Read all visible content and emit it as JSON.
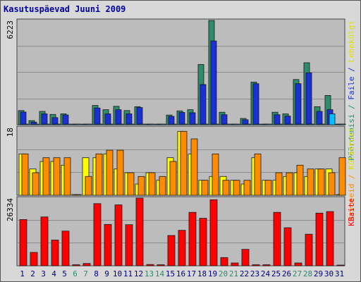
{
  "chart_data": [
    {
      "type": "bar",
      "title": "Kasutuspäevad Juuni 2009",
      "categories": [
        "1",
        "2",
        "3",
        "4",
        "5",
        "6",
        "7",
        "8",
        "9",
        "10",
        "11",
        "12",
        "13",
        "14",
        "15",
        "16",
        "17",
        "18",
        "19",
        "20",
        "21",
        "22",
        "23",
        "24",
        "25",
        "26",
        "27",
        "28",
        "29",
        "30",
        "31"
      ],
      "weekend_days": [
        "6",
        "7",
        "13",
        "14",
        "20",
        "21",
        "27",
        "28"
      ],
      "ymax_label": "6223",
      "ylim": [
        0,
        6223
      ],
      "series": [
        {
          "name": "Pöördumisi",
          "color": "#2e8b6b",
          "values": [
            850,
            250,
            800,
            620,
            650,
            30,
            30,
            1150,
            900,
            1100,
            850,
            1080,
            30,
            30,
            580,
            830,
            900,
            3600,
            6223,
            750,
            30,
            380,
            2550,
            30,
            750,
            650,
            2700,
            3700,
            1080,
            1750,
            30
          ]
        },
        {
          "name": "Faile",
          "color": "#1a2fd6",
          "values": [
            760,
            160,
            650,
            430,
            590,
            20,
            20,
            1000,
            650,
            900,
            650,
            1030,
            20,
            20,
            500,
            740,
            720,
            2400,
            5000,
            600,
            20,
            300,
            2450,
            20,
            600,
            520,
            2450,
            3100,
            800,
            900,
            20
          ]
        },
        {
          "name": "Lehekülgi",
          "color": "#00bfff",
          "values": [
            0,
            0,
            0,
            0,
            0,
            0,
            0,
            0,
            0,
            0,
            0,
            0,
            0,
            0,
            0,
            0,
            0,
            0,
            0,
            0,
            0,
            0,
            0,
            0,
            0,
            0,
            0,
            0,
            0,
            650,
            0
          ]
        }
      ],
      "right_label": [
        "Pöördumisi",
        " / ",
        "Faile",
        " / ",
        "Lehekülgi"
      ],
      "right_label_colors": [
        "#2e8b6b",
        "#2e8b6b",
        "#1a2fd6",
        "#1a2fd6",
        "#e0e000"
      ]
    },
    {
      "type": "bar",
      "ymax_label": "18",
      "ylim": [
        0,
        18
      ],
      "series": [
        {
          "name": "Külastusi",
          "color": "#ffff00",
          "values": [
            11,
            7,
            9,
            9,
            8,
            0,
            10,
            10,
            11,
            7,
            6,
            3,
            6,
            4,
            10,
            17,
            11,
            4,
            5,
            5,
            4,
            3,
            10,
            4,
            4,
            5,
            6,
            5,
            7,
            7,
            0
          ]
        },
        {
          "name": "Arvuteid",
          "color": "#ff8c00",
          "values": [
            11,
            6,
            10,
            10,
            10,
            0,
            5,
            11,
            12,
            12,
            6,
            5,
            6,
            5,
            9,
            17,
            15,
            4,
            11,
            4,
            4,
            4,
            11,
            4,
            6,
            6,
            8,
            7,
            7,
            6,
            10
          ]
        }
      ],
      "right_label": [
        "Arvuteid",
        " / ",
        "Külastusi"
      ],
      "right_label_colors": [
        "#ff8c00",
        "#ff8c00",
        "#e0e000"
      ]
    },
    {
      "type": "bar",
      "ymax_label": "26334",
      "ylim": [
        0,
        26334
      ],
      "series": [
        {
          "name": "KBaite",
          "color": "#ff0000",
          "values": [
            18000,
            5200,
            19000,
            10000,
            13500,
            400,
            900,
            24200,
            16100,
            23700,
            16000,
            26334,
            500,
            400,
            11800,
            13800,
            20800,
            18500,
            25700,
            3200,
            1100,
            6400,
            400,
            400,
            20800,
            14800,
            1100,
            12300,
            20500,
            21100,
            0
          ]
        }
      ],
      "right_label": [
        "KBaite"
      ],
      "right_label_colors": [
        "#ff0000"
      ]
    }
  ]
}
